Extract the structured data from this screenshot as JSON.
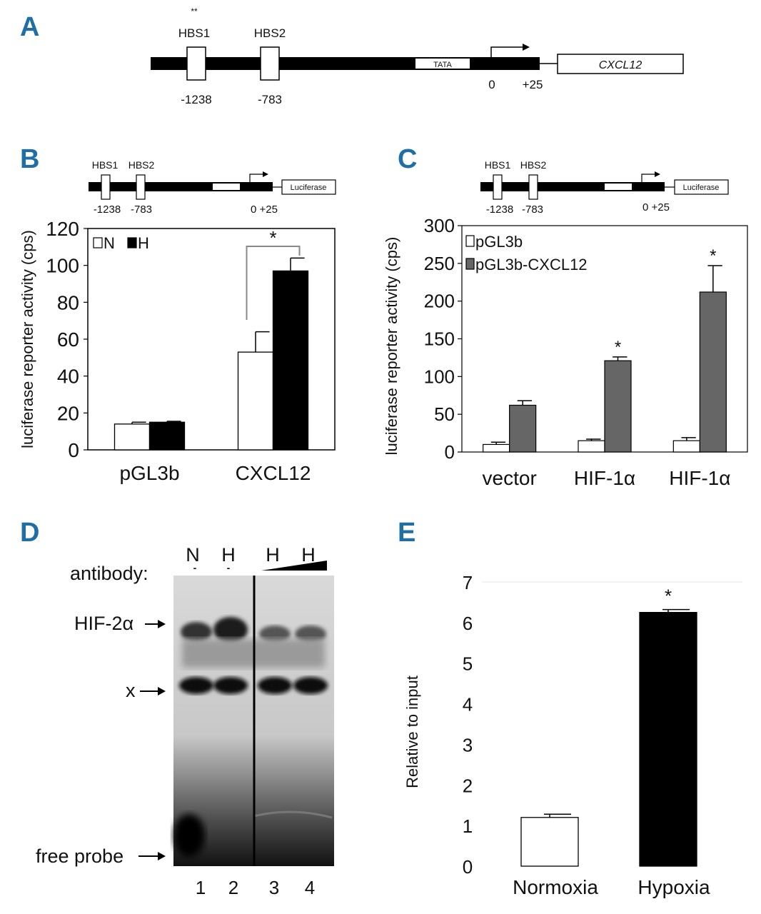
{
  "panels": {
    "A": {
      "letter": "A",
      "stars": "**",
      "hbs1": "HBS1",
      "hbs2": "HBS2",
      "tata": "TATA",
      "gene": "CXCL12",
      "pos_hbs1": "-1238",
      "pos_hbs2": "-783",
      "pos_zero": "0",
      "pos_plus25": "+25"
    },
    "B": {
      "letter": "B",
      "hbs1": "HBS1",
      "hbs2": "HBS2",
      "reporter": "Luciferase",
      "pos_hbs1": "-1238",
      "pos_hbs2": "-783",
      "pos_tss": "0 +25"
    },
    "C": {
      "letter": "C",
      "hbs1": "HBS1",
      "hbs2": "HBS2",
      "reporter": "Luciferase",
      "pos_hbs1": "-1238",
      "pos_hbs2": "-783",
      "pos_tss": "0 +25"
    },
    "D": {
      "letter": "D",
      "antibody": "antibody:",
      "lane_conditions": [
        "N",
        "H",
        "H",
        "H"
      ],
      "lane_antibody": [
        "-",
        "-",
        "",
        ""
      ],
      "band_hif": "HIF-2α",
      "band_x": "x",
      "band_free": "free probe",
      "lane_numbers": [
        "1",
        "2",
        "3",
        "4"
      ]
    },
    "E": {
      "letter": "E"
    }
  },
  "chart_data": [
    {
      "type": "bar",
      "panel": "B",
      "categories": [
        "pGL3b",
        "CXCL12"
      ],
      "series": [
        {
          "name": "N",
          "values": [
            14,
            53
          ],
          "errors": [
            1,
            11
          ],
          "color": "#ffffff"
        },
        {
          "name": "H",
          "values": [
            15,
            97
          ],
          "errors": [
            0.5,
            7
          ],
          "color": "#000000"
        }
      ],
      "ylabel": "luciferase reporter activity (cps)",
      "ylim": [
        0,
        120
      ],
      "yticks": [
        "0",
        "20",
        "40",
        "60",
        "80",
        "100",
        "120"
      ],
      "significance": "*",
      "legend_position": "top-left"
    },
    {
      "type": "bar",
      "panel": "C",
      "categories": [
        "vector",
        "HIF-1α",
        "HIF-1α"
      ],
      "series": [
        {
          "name": "pGL3b",
          "values": [
            10,
            15,
            15
          ],
          "errors": [
            3,
            2,
            4
          ],
          "color": "#ffffff"
        },
        {
          "name": "pGL3b-CXCL12",
          "values": [
            62,
            121,
            212
          ],
          "errors": [
            6,
            5,
            35
          ],
          "color": "#666666"
        }
      ],
      "ylabel": "luciferase reporter activity (cps)",
      "ylim": [
        0,
        300
      ],
      "yticks": [
        "0",
        "50",
        "100",
        "150",
        "200",
        "250",
        "300"
      ],
      "significance": [
        "",
        "*",
        "*"
      ],
      "legend_position": "top-left"
    },
    {
      "type": "bar",
      "panel": "E",
      "categories": [
        "Normoxia",
        "Hypoxia"
      ],
      "values": [
        1.2,
        6.25
      ],
      "errors": [
        0.08,
        0.07
      ],
      "colors": [
        "#ffffff",
        "#000000"
      ],
      "ylabel": "Relative to input",
      "ylim": [
        0,
        7
      ],
      "yticks": [
        "0",
        "1",
        "2",
        "3",
        "4",
        "5",
        "6",
        "7"
      ],
      "significance": [
        "",
        "*"
      ]
    }
  ]
}
